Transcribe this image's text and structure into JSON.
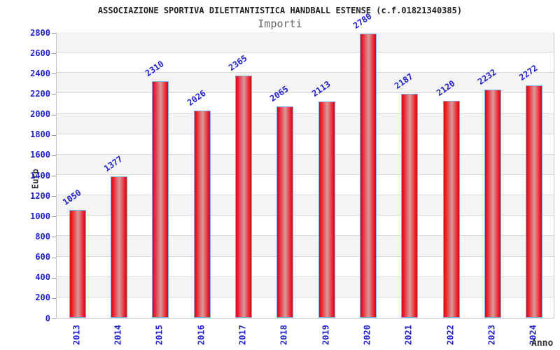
{
  "chart_data": {
    "type": "bar",
    "title": "ASSOCIAZIONE SPORTIVA DILETTANTISTICA HANDBALL ESTENSE (c.f.01821340385)",
    "subtitle": "Importi",
    "xlabel": "Anno",
    "ylabel": "Euro",
    "categories": [
      "2013",
      "2014",
      "2015",
      "2016",
      "2017",
      "2018",
      "2019",
      "2020",
      "2021",
      "2022",
      "2023",
      "2024"
    ],
    "values": [
      1050,
      1377,
      2310,
      2026,
      2365,
      2065,
      2113,
      2780,
      2187,
      2120,
      2232,
      2272
    ],
    "ylim": [
      0,
      2800
    ],
    "ytick_step": 200,
    "grid": true,
    "legend": "none",
    "bands_alternating": true,
    "style": {
      "value_label_color": "#2222cc",
      "tick_label_color": "#2222cc",
      "axis_title_color": "#333333",
      "title_color": "#222222",
      "subtitle_color": "#666666",
      "bar_edge_color": "#c8101e",
      "bar_main_color": "#ee1a27",
      "bar_highlight_color": "#d89c9c",
      "bar_border_color": "#7fb0dd",
      "gridline_color": "#d9d9d9",
      "band_color": "#f4f4f4",
      "tick_mark_color": "#999999",
      "plot_border_color": "#c4c4c4"
    }
  }
}
